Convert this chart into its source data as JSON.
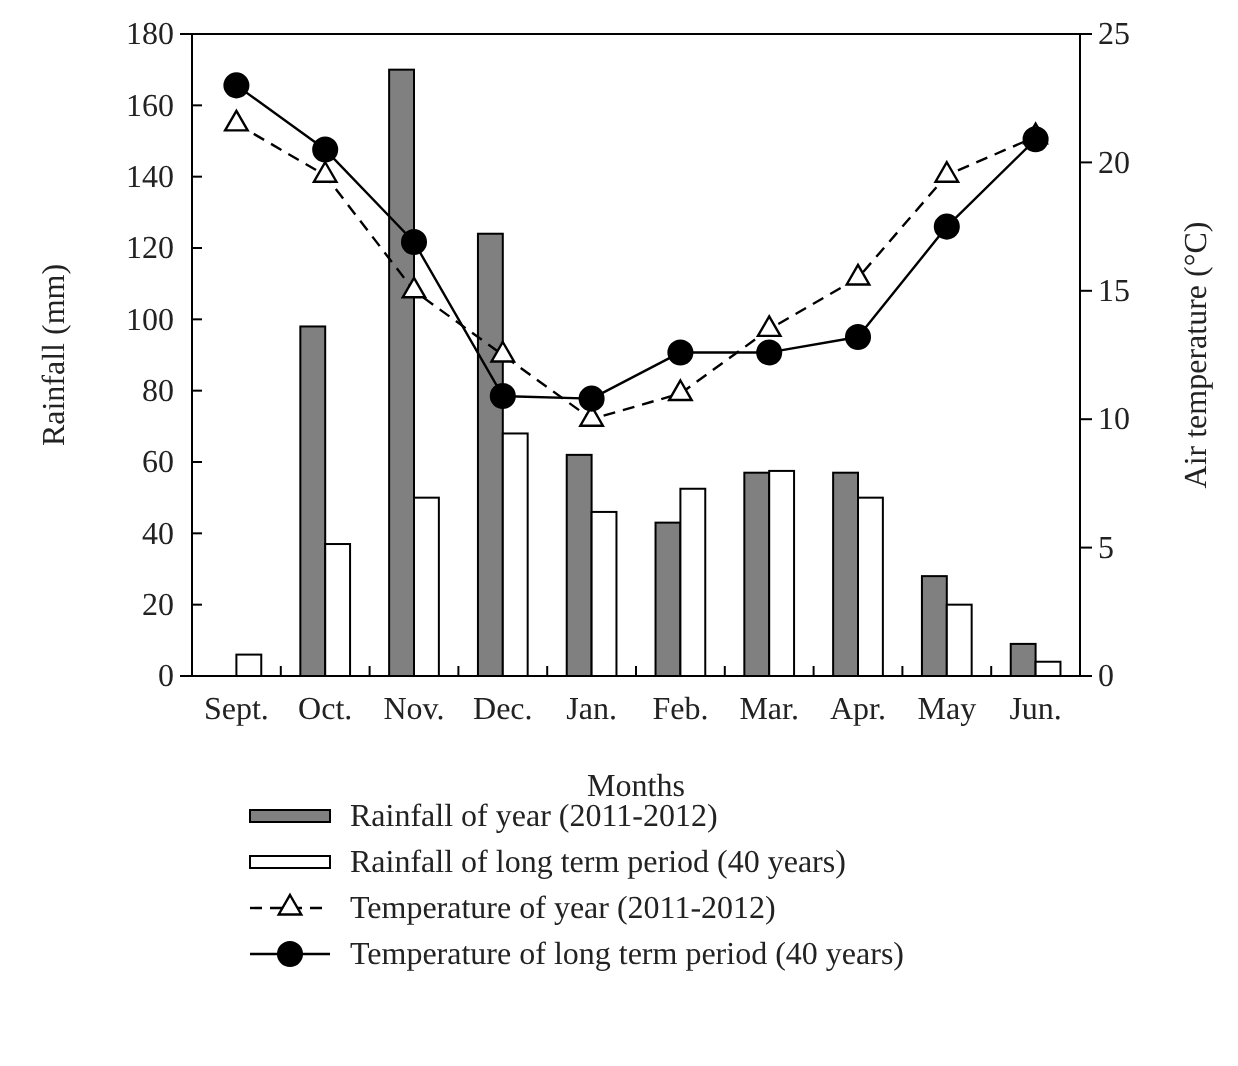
{
  "chart_data": {
    "type": "bar",
    "xlabel": "Months",
    "ylabel": "Rainfall (mm)",
    "y2label": "Air temperature (°C)",
    "categories": [
      "Sept.",
      "Oct.",
      "Nov.",
      "Dec.",
      "Jan.",
      "Feb.",
      "Mar.",
      "Apr.",
      "May",
      "Jun."
    ],
    "ylim": [
      0,
      180
    ],
    "yticks": [
      0,
      20,
      40,
      60,
      80,
      100,
      120,
      140,
      160,
      180
    ],
    "y2lim": [
      0,
      25
    ],
    "y2ticks": [
      0,
      5,
      10,
      15,
      20,
      25
    ],
    "legend": "bottom",
    "grid": false,
    "series": [
      {
        "name": "Rainfall of year (2011-2012)",
        "color": "#808080",
        "values": [
          null,
          98,
          170,
          124,
          62,
          43,
          57,
          57,
          28,
          9
        ]
      },
      {
        "name": "Rainfall of long term period (40 years)",
        "color": "#ffffff",
        "values": [
          6,
          37,
          50,
          68,
          46,
          52.5,
          57.5,
          50,
          20,
          4
        ]
      },
      {
        "name": "Temperature of year (2011-2012)",
        "type": "line",
        "axis": "y2",
        "color": "#000000",
        "marker": "triangle",
        "line_style": "dashed",
        "values": [
          21.5,
          19.5,
          15,
          12.5,
          10,
          11,
          13.5,
          15.5,
          19.5,
          21
        ]
      },
      {
        "name": "Temperature of long term period (40 years)",
        "type": "line",
        "axis": "y2",
        "color": "#000000",
        "marker": "circle",
        "line_style": "solid",
        "values": [
          23,
          20.5,
          16.9,
          10.9,
          10.8,
          12.6,
          12.6,
          13.2,
          17.5,
          20.9
        ]
      }
    ]
  }
}
